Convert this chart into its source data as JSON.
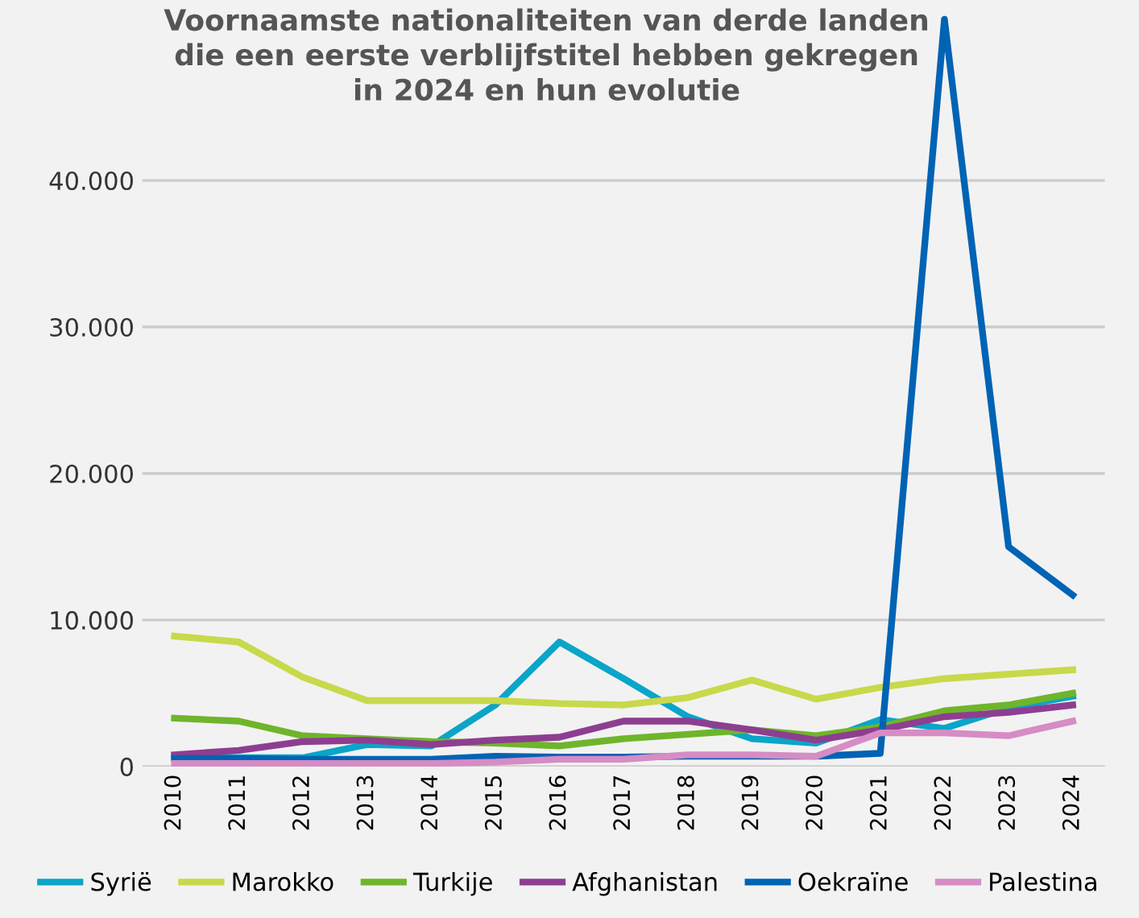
{
  "chart_data": {
    "type": "line",
    "title": "Voornaamste nationaliteiten van derde landen\ndie een eerste verblijfstitel hebben gekregen\nin 2024 en hun evolutie",
    "categories": [
      "2010",
      "2011",
      "2012",
      "2013",
      "2014",
      "2015",
      "2016",
      "2017",
      "2018",
      "2019",
      "2020",
      "2021",
      "2022",
      "2023",
      "2024"
    ],
    "series": [
      {
        "name": "Syrië",
        "color": "#0aa5c8",
        "values": [
          600,
          600,
          600,
          1500,
          1400,
          4200,
          8500,
          6000,
          3400,
          1900,
          1600,
          3200,
          2600,
          4000,
          4800
        ]
      },
      {
        "name": "Marokko",
        "color": "#c8d94b",
        "values": [
          8900,
          8500,
          6100,
          4500,
          4500,
          4500,
          4300,
          4200,
          4700,
          5900,
          4600,
          5400,
          6000,
          6300,
          6600
        ]
      },
      {
        "name": "Turkije",
        "color": "#6fb52c",
        "values": [
          3300,
          3100,
          2100,
          1900,
          1700,
          1600,
          1400,
          1900,
          2200,
          2500,
          2100,
          2700,
          3800,
          4200,
          5000
        ]
      },
      {
        "name": "Afghanistan",
        "color": "#8e3e91",
        "values": [
          800,
          1100,
          1700,
          1800,
          1500,
          1800,
          2000,
          3100,
          3100,
          2500,
          1800,
          2500,
          3400,
          3700,
          4200
        ]
      },
      {
        "name": "Oekraïne",
        "color": "#0063b4",
        "values": [
          550,
          550,
          500,
          500,
          500,
          700,
          650,
          650,
          700,
          700,
          700,
          900,
          51000,
          15000,
          11700
        ]
      },
      {
        "name": "Palestina",
        "color": "#d68cc4",
        "values": [
          200,
          200,
          200,
          200,
          200,
          300,
          500,
          500,
          800,
          800,
          700,
          2300,
          2300,
          2100,
          3100
        ]
      }
    ],
    "ylim": [
      0,
      52000
    ],
    "yticks": [
      {
        "value": 0,
        "label": "0"
      },
      {
        "value": 10000,
        "label": "10.000"
      },
      {
        "value": 20000,
        "label": "20.000"
      },
      {
        "value": 30000,
        "label": "30.000"
      },
      {
        "value": 40000,
        "label": "40.000"
      }
    ],
    "grid": "y",
    "legend": "bottom",
    "marker": "none",
    "line_style": "solid"
  }
}
